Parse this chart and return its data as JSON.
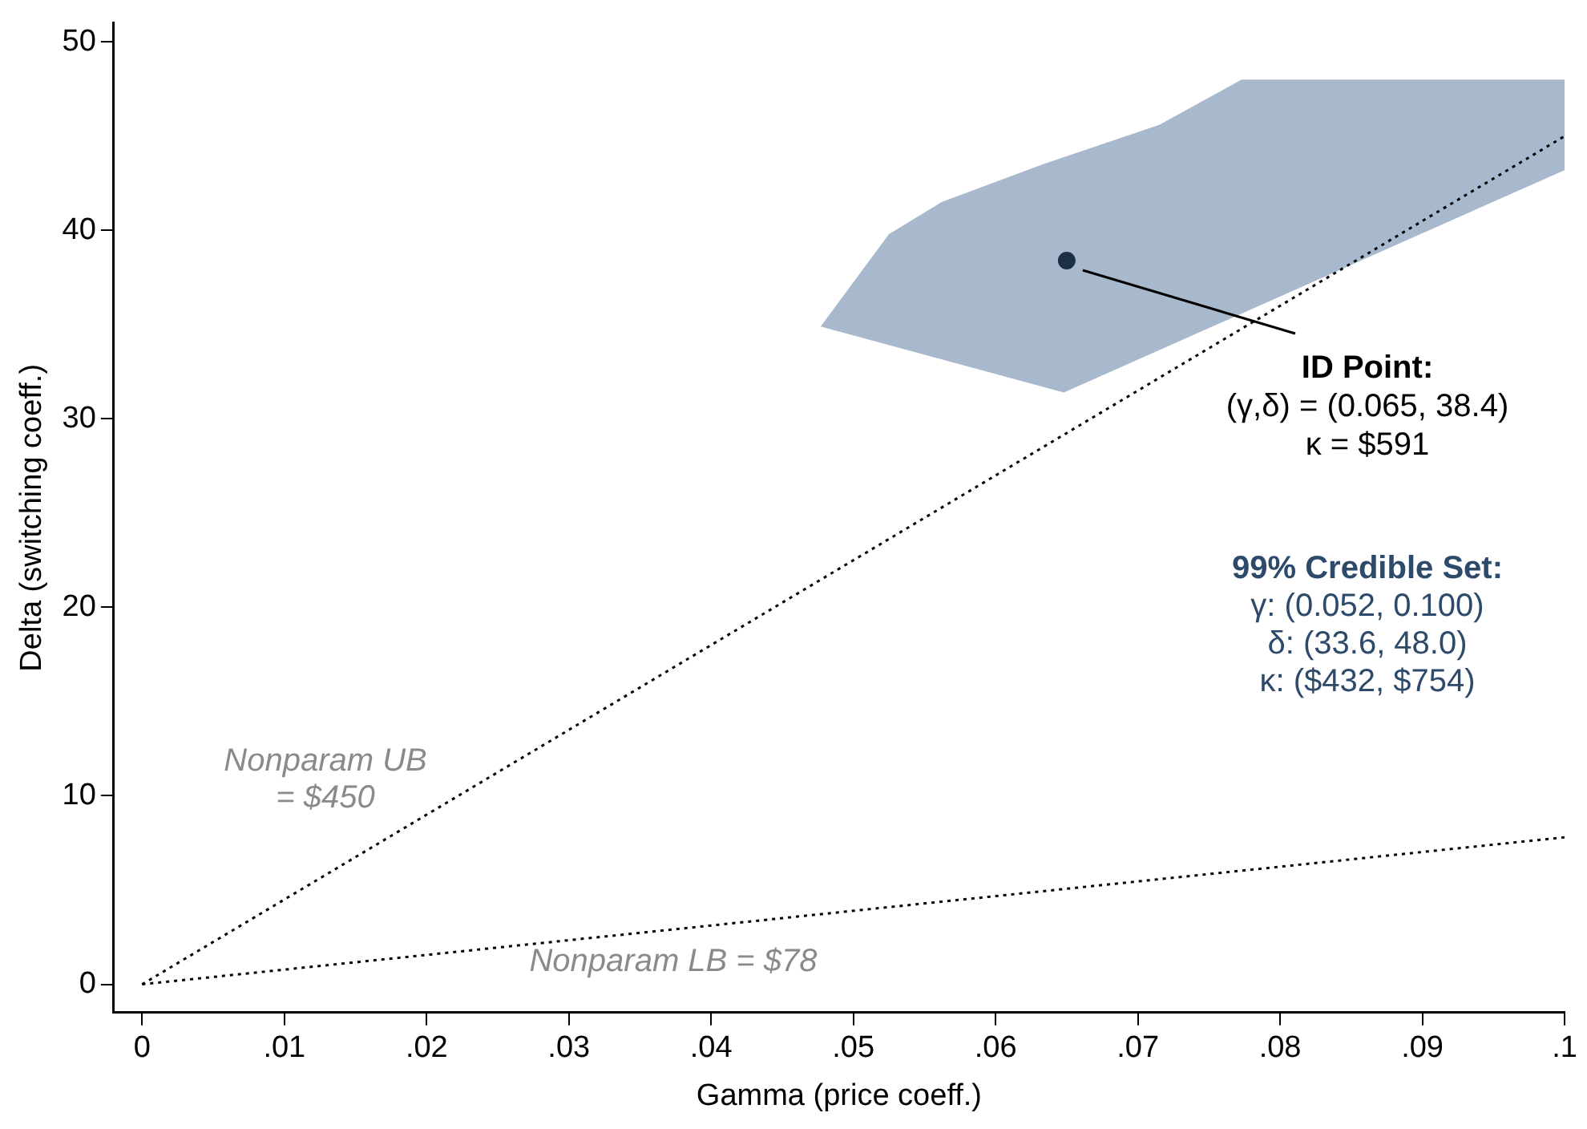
{
  "chart_data": {
    "type": "scatter",
    "xlabel": "Gamma (price coeff.)",
    "ylabel": "Delta (switching coeff.)",
    "series": [
      {
        "type": "area",
        "color": "#a9b9cd",
        "x": [
          0.0477,
          0.0525,
          0.0562,
          0.0633,
          0.0715,
          0.0773,
          0.1,
          0.1,
          0.0648,
          0.0477
        ],
        "values": [
          34.9,
          39.8,
          41.5,
          43.5,
          45.6,
          48.0,
          48.0,
          43.2,
          31.4,
          34.9
        ]
      },
      {
        "type": "line",
        "color": "#000000",
        "line_style": "dotted",
        "x": [
          0,
          0.1
        ],
        "values": [
          0,
          45
        ]
      },
      {
        "type": "line",
        "color": "#000000",
        "line_style": "dotted",
        "x": [
          0,
          0.1
        ],
        "values": [
          0,
          7.8
        ]
      },
      {
        "color": "#1c2f45",
        "marker": "circle",
        "x": [
          0.065
        ],
        "values": [
          38.4
        ]
      }
    ],
    "xlim": [
      -0.002,
      0.1
    ],
    "ylim": [
      -1.5,
      51
    ],
    "xticks": [
      0,
      {
        "value": 0.01,
        "label": ".01"
      },
      {
        "value": 0.02,
        "label": ".02"
      },
      {
        "value": 0.03,
        "label": ".03"
      },
      {
        "value": 0.04,
        "label": ".04"
      },
      {
        "value": 0.05,
        "label": ".05"
      },
      {
        "value": 0.06,
        "label": ".06"
      },
      {
        "value": 0.07,
        "label": ".07"
      },
      {
        "value": 0.08,
        "label": ".08"
      },
      {
        "value": 0.09,
        "label": ".09"
      },
      {
        "value": 0.1,
        "label": ".1"
      }
    ],
    "yticks": [
      0,
      10,
      20,
      30,
      40,
      50
    ],
    "grid": false,
    "legend": false,
    "annotations": [
      "ID Point:\n(γ,δ) = (0.065, 38.4)\nκ = $591",
      "99% Credible Set:\nγ: (0.052, 0.100)\nδ: (33.6, 48.0)\nκ: ($432, $754)",
      "Nonparam UB\n= $450",
      "Nonparam LB = $78"
    ]
  }
}
